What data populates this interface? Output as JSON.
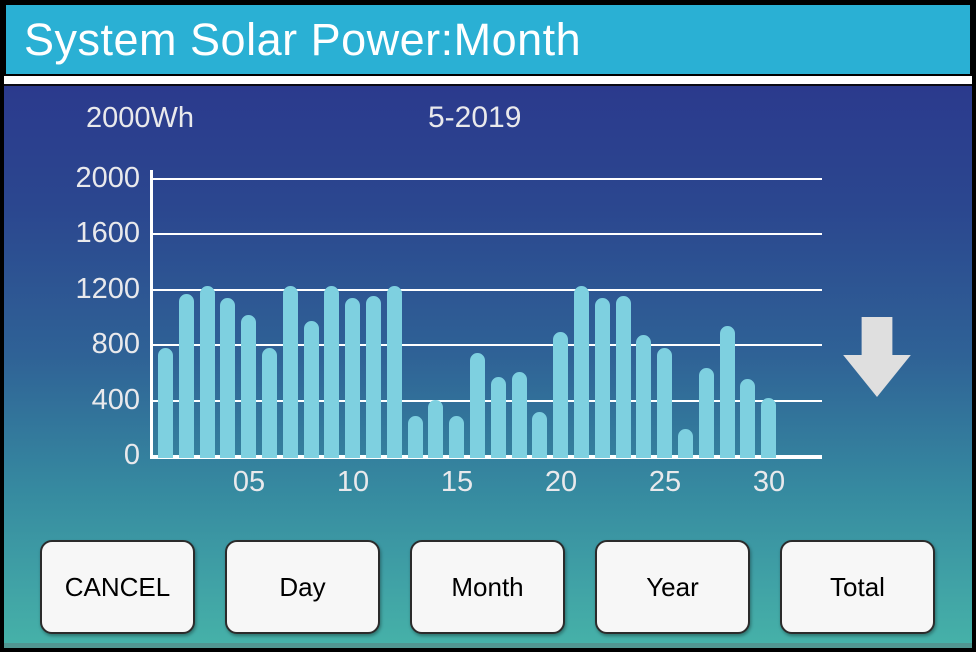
{
  "title_bar": {
    "title": "System Solar Power:Month",
    "bg_color": "#2ab0d4"
  },
  "chart_data": {
    "type": "bar",
    "title": "System Solar Power:Month",
    "unit_label": "2000Wh",
    "period_label": "5-2019",
    "ylabel": "Wh",
    "ylim": [
      0,
      2000
    ],
    "y_ticks": [
      2000,
      1600,
      1200,
      800,
      400,
      0
    ],
    "x_tick_labels": [
      "05",
      "10",
      "15",
      "20",
      "25",
      "30"
    ],
    "x_tick_days": [
      5,
      10,
      15,
      20,
      25,
      30
    ],
    "categories": [
      1,
      2,
      3,
      4,
      5,
      6,
      7,
      8,
      9,
      10,
      11,
      12,
      13,
      14,
      15,
      16,
      17,
      18,
      19,
      20,
      21,
      22,
      23,
      24,
      25,
      26,
      27,
      28,
      29,
      30
    ],
    "values": [
      770,
      1160,
      1220,
      1130,
      1010,
      770,
      1220,
      970,
      1220,
      1130,
      1150,
      1220,
      280,
      400,
      280,
      740,
      560,
      600,
      310,
      890,
      1220,
      1130,
      1150,
      870,
      770,
      190,
      630,
      930,
      550,
      410
    ],
    "bar_color": "#7ed0e0",
    "grid": true,
    "gridline_color": "#ffffff",
    "legend": "none"
  },
  "arrow": {
    "name": "down-arrow",
    "color": "#dfdfdf"
  },
  "buttons": [
    {
      "id": "cancel",
      "label": "CANCEL"
    },
    {
      "id": "day",
      "label": "Day"
    },
    {
      "id": "month",
      "label": "Month"
    },
    {
      "id": "year",
      "label": "Year"
    },
    {
      "id": "total",
      "label": "Total"
    }
  ],
  "colors": {
    "title_bar_bg": "#2ab0d4",
    "bar": "#7ed0e0",
    "axis_text": "#e9e9ec",
    "button_bg": "#f7f7f7",
    "arrow": "#dfdfdf",
    "gradient_top": "#2b3a8d",
    "gradient_bottom": "#46b2a8"
  }
}
